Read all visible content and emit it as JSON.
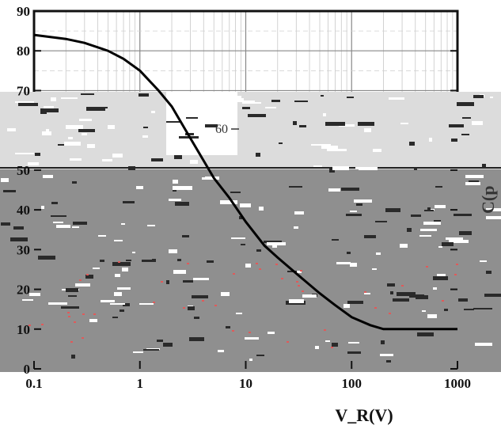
{
  "chart_data": {
    "type": "line",
    "xlabel": "V_R(V)",
    "ylabel": "",
    "x_scale": "log",
    "xlim": [
      0.1,
      1000
    ],
    "ylim": [
      0,
      90
    ],
    "x_ticks": [
      "0.1",
      "1",
      "10",
      "100",
      "1000"
    ],
    "y_ticks": [
      "0",
      "10",
      "20",
      "30",
      "40",
      "50",
      "70",
      "80",
      "90"
    ],
    "grid": true,
    "series": [
      {
        "x": [
          0.1,
          0.2,
          0.3,
          0.5,
          0.7,
          1.0,
          1.5,
          2,
          3,
          5,
          7,
          10,
          15,
          20,
          30,
          50,
          70,
          100,
          150,
          200,
          300,
          500,
          700,
          1000
        ],
        "y": [
          84,
          83,
          82,
          80,
          78,
          75,
          70,
          66,
          58,
          48,
          43,
          37,
          31,
          28,
          24,
          19,
          16,
          13,
          11,
          10,
          10,
          10,
          10,
          10
        ]
      }
    ],
    "inset": {
      "y_ticks": [
        "60"
      ]
    },
    "right_label": "C(p"
  }
}
